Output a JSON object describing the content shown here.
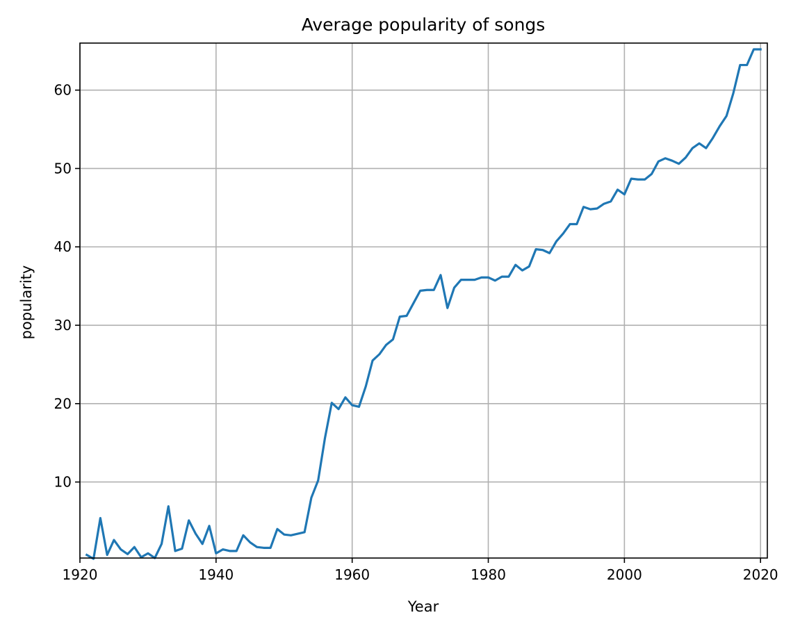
{
  "chart_data": {
    "type": "line",
    "title": "Average popularity of songs",
    "xlabel": "Year",
    "ylabel": "popularity",
    "xlim": [
      1920,
      2021
    ],
    "ylim": [
      0.3,
      66
    ],
    "xticks": [
      1920,
      1940,
      1960,
      1980,
      2000,
      2020
    ],
    "yticks": [
      10,
      20,
      30,
      40,
      50,
      60
    ],
    "grid": true,
    "series": [
      {
        "color": "#1f77b4",
        "x": [
          1921,
          1922,
          1923,
          1924,
          1925,
          1926,
          1927,
          1928,
          1929,
          1930,
          1931,
          1932,
          1933,
          1934,
          1935,
          1936,
          1937,
          1938,
          1939,
          1940,
          1941,
          1942,
          1943,
          1944,
          1945,
          1946,
          1947,
          1948,
          1949,
          1950,
          1951,
          1952,
          1953,
          1954,
          1955,
          1956,
          1957,
          1958,
          1959,
          1960,
          1961,
          1962,
          1963,
          1964,
          1965,
          1966,
          1967,
          1968,
          1969,
          1970,
          1971,
          1972,
          1973,
          1974,
          1975,
          1976,
          1977,
          1978,
          1979,
          1980,
          1981,
          1982,
          1983,
          1984,
          1985,
          1986,
          1987,
          1988,
          1989,
          1990,
          1991,
          1992,
          1993,
          1994,
          1995,
          1996,
          1997,
          1998,
          1999,
          2000,
          2001,
          2002,
          2003,
          2004,
          2005,
          2006,
          2007,
          2008,
          2009,
          2010,
          2011,
          2012,
          2013,
          2014,
          2015,
          2016,
          2017,
          2018,
          2019,
          2020
        ],
        "y": [
          0.7,
          0.2,
          5.4,
          0.7,
          2.6,
          1.4,
          0.8,
          1.7,
          0.4,
          0.9,
          0.3,
          2.1,
          6.9,
          1.2,
          1.5,
          5.1,
          3.4,
          2.1,
          4.4,
          0.9,
          1.4,
          1.2,
          1.2,
          3.2,
          2.3,
          1.7,
          1.6,
          1.6,
          4.0,
          3.3,
          3.2,
          3.4,
          3.6,
          8.0,
          10.2,
          15.6,
          20.1,
          19.3,
          20.8,
          19.8,
          19.6,
          22.2,
          25.5,
          26.3,
          27.5,
          28.2,
          31.1,
          31.2,
          32.8,
          34.4,
          34.5,
          34.5,
          36.4,
          32.2,
          34.8,
          35.8,
          35.8,
          35.8,
          36.1,
          36.1,
          35.7,
          36.2,
          36.2,
          37.7,
          37.0,
          37.5,
          39.7,
          39.6,
          39.2,
          40.7,
          41.7,
          42.9,
          42.9,
          45.1,
          44.8,
          44.9,
          45.5,
          45.8,
          47.3,
          46.7,
          48.7,
          48.6,
          48.6,
          49.3,
          50.9,
          51.3,
          51.0,
          50.6,
          51.4,
          52.6,
          53.2,
          52.6,
          53.9,
          55.4,
          56.7,
          59.6,
          63.2,
          63.2,
          65.2,
          65.2
        ]
      }
    ]
  }
}
